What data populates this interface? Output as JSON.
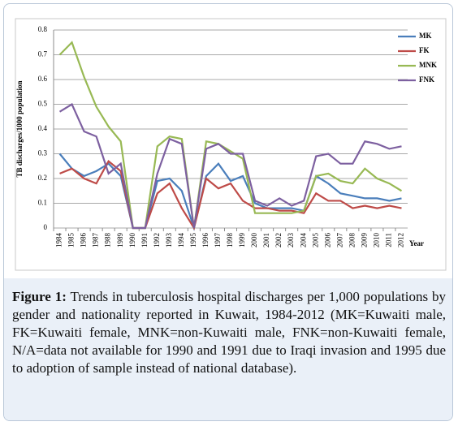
{
  "chart_data": {
    "type": "line",
    "y_label": "TB discharges/1000 population",
    "x_label": "Year",
    "categories": [
      1984,
      1985,
      1986,
      1987,
      1988,
      1989,
      1990,
      1991,
      1992,
      1993,
      1994,
      1995,
      1996,
      1997,
      1998,
      1999,
      2000,
      2001,
      2002,
      2003,
      2004,
      2005,
      2006,
      2007,
      2008,
      2009,
      2010,
      2011,
      2012
    ],
    "series": [
      {
        "name": "MK",
        "color": "#4a7ebb",
        "values": [
          0.3,
          0.24,
          0.21,
          0.23,
          0.26,
          0.21,
          0,
          0,
          0.19,
          0.2,
          0.15,
          0,
          0.21,
          0.26,
          0.19,
          0.21,
          0.1,
          0.08,
          0.08,
          0.08,
          0.07,
          0.21,
          0.18,
          0.14,
          0.13,
          0.12,
          0.12,
          0.11,
          0.12
        ]
      },
      {
        "name": "FK",
        "color": "#be4b48",
        "values": [
          0.22,
          0.24,
          0.2,
          0.18,
          0.27,
          0.23,
          0,
          0,
          0.14,
          0.18,
          0.08,
          0,
          0.2,
          0.16,
          0.18,
          0.11,
          0.08,
          0.08,
          0.07,
          0.07,
          0.06,
          0.14,
          0.11,
          0.11,
          0.08,
          0.09,
          0.08,
          0.09,
          0.08
        ]
      },
      {
        "name": "MNK",
        "color": "#98b954",
        "values": [
          0.7,
          0.75,
          0.61,
          0.49,
          0.41,
          0.35,
          0,
          0,
          0.33,
          0.37,
          0.36,
          0,
          0.35,
          0.34,
          0.31,
          0.28,
          0.06,
          0.06,
          0.06,
          0.06,
          0.07,
          0.21,
          0.22,
          0.19,
          0.18,
          0.24,
          0.2,
          0.18,
          0.15
        ]
      },
      {
        "name": "FNK",
        "color": "#7d60a0",
        "values": [
          0.47,
          0.5,
          0.39,
          0.37,
          0.22,
          0.26,
          0,
          0,
          0.22,
          0.36,
          0.34,
          0,
          0.32,
          0.34,
          0.3,
          0.3,
          0.11,
          0.09,
          0.12,
          0.09,
          0.11,
          0.29,
          0.3,
          0.26,
          0.26,
          0.35,
          0.34,
          0.32,
          0.33
        ]
      }
    ],
    "ylim": [
      0,
      0.8
    ],
    "yticks": [
      0,
      0.1,
      0.2,
      0.3,
      0.4,
      0.5,
      0.6,
      0.7,
      0.8
    ],
    "grid": true,
    "legend": "right"
  },
  "caption": {
    "label": "Figure 1:",
    "text": "Trends in tuberculosis hospital discharges per 1,000 populations by gender and nationality reported in Kuwait, 1984-2012 (MK=Kuwaiti male, FK=Kuwaiti female, MNK=non-Kuwaiti male, FNK=non-Kuwaiti female, N/A=data not available for 1990 and 1991 due to Iraqi invasion and 1995 due to adoption of sample instead of national database)."
  }
}
